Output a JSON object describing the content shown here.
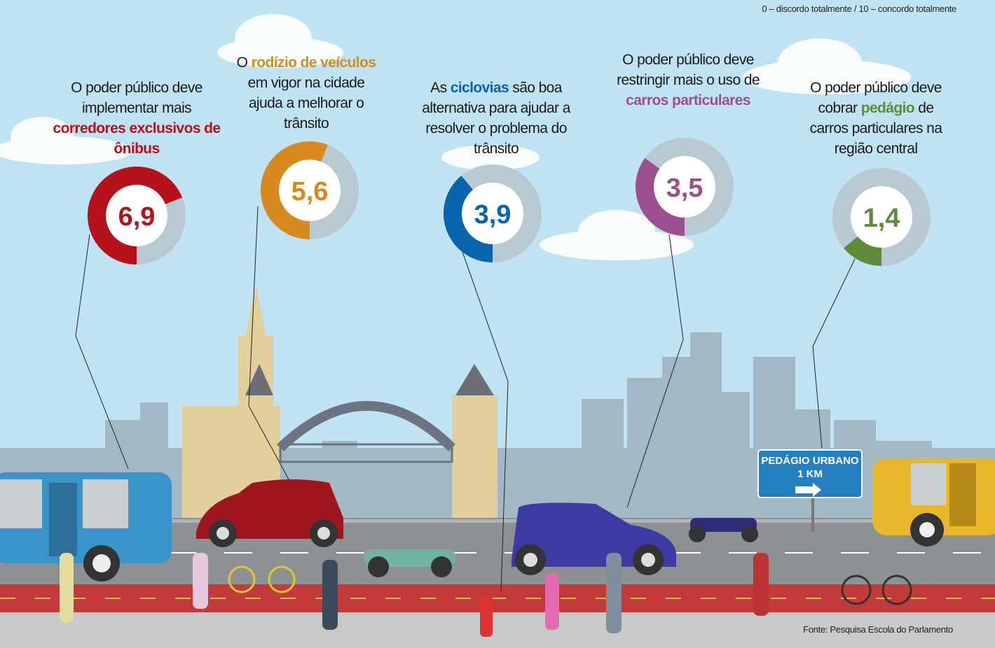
{
  "note": "0 – discordo totalmente / 10 – concordo totalmente",
  "source": "Fonte: Pesquisa Escola do Parlamento",
  "sign": {
    "line1": "PEDÁGIO URBANO",
    "line2": "1 KM"
  },
  "chart_data": [
    {
      "type": "donut",
      "title_before": "O poder público deve implementar mais",
      "title_highlight": "corredores exclusivos de ônibus",
      "values": [
        6.9
      ],
      "value_labels": [
        "6,9"
      ],
      "color": "#b5121b",
      "ylim": [
        0,
        10
      ]
    },
    {
      "type": "donut",
      "title_before": "O",
      "title_highlight": "rodízio de veículos",
      "title_after": "em vigor na cidade ajuda a melhorar o trânsito",
      "values": [
        5.6
      ],
      "value_labels": [
        "5,6"
      ],
      "color": "#d98a1f",
      "ylim": [
        0,
        10
      ]
    },
    {
      "type": "donut",
      "title_before": "As",
      "title_highlight": "ciclovias",
      "title_after": "são boa alternativa para ajudar a resolver o problema do trânsito",
      "values": [
        3.9
      ],
      "value_labels": [
        "3,9"
      ],
      "color": "#0a63ad",
      "ylim": [
        0,
        10
      ]
    },
    {
      "type": "donut",
      "title_before": "O poder público deve restringir mais o uso de",
      "title_highlight": "carros particulares",
      "values": [
        3.5
      ],
      "value_labels": [
        "3,5"
      ],
      "color": "#9b4f8e",
      "ylim": [
        0,
        10
      ]
    },
    {
      "type": "donut",
      "title_before": "O poder público deve cobrar",
      "title_highlight": "pedágio",
      "title_after": "de carros particulares na região central",
      "values": [
        1.4
      ],
      "value_labels": [
        "1,4"
      ],
      "color": "#5f8a3a",
      "ylim": [
        0,
        10
      ]
    }
  ]
}
